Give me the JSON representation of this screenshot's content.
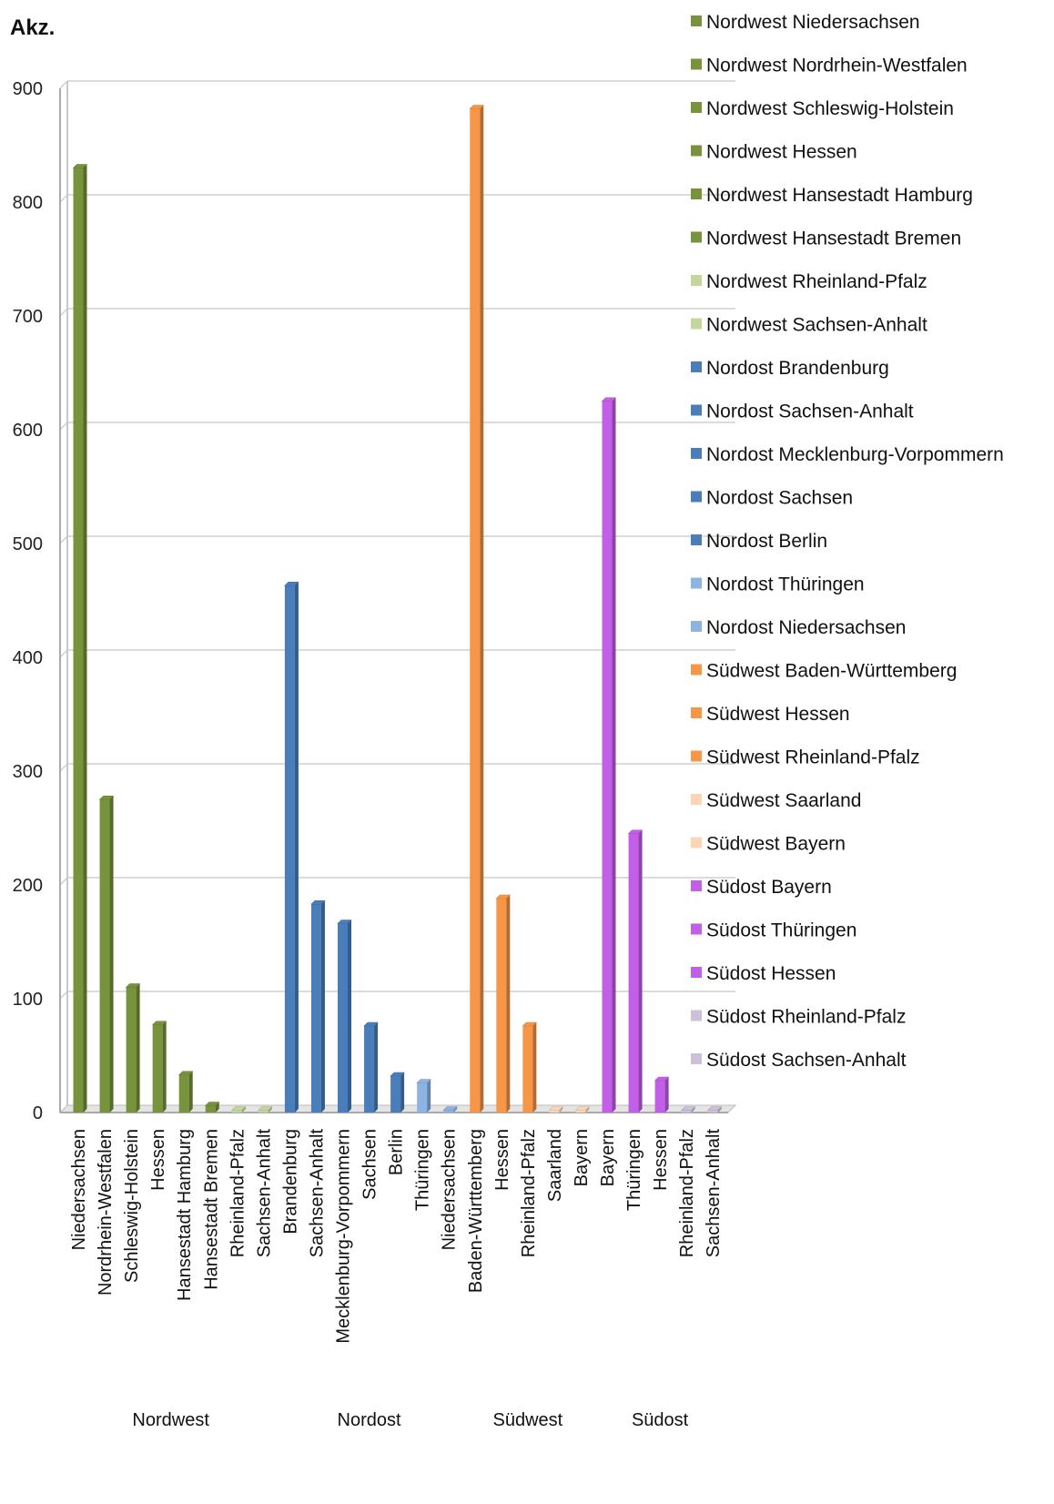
{
  "chart_data": {
    "type": "bar",
    "ylabel": "Akz.",
    "ylim": [
      0,
      900
    ],
    "yticks": [
      0,
      100,
      200,
      300,
      400,
      500,
      600,
      700,
      800,
      900
    ],
    "grid": true,
    "legend_position": "right",
    "groups": [
      {
        "name": "Nordwest",
        "categories": [
          "Niedersachsen",
          "Nordrhein-Westfalen",
          "Schleswig-Holstein",
          "Hessen",
          "Hansestadt Hamburg",
          "Hansestadt Bremen",
          "Rheinland-Pfalz",
          "Sachsen-Anhalt"
        ]
      },
      {
        "name": "Nordost",
        "categories": [
          "Brandenburg",
          "Sachsen-Anhalt",
          "Mecklenburg-Vorpommern",
          "Sachsen",
          "Berlin",
          "Thüringen",
          "Niedersachsen"
        ]
      },
      {
        "name": "Südwest",
        "categories": [
          "Baden-Württemberg",
          "Hessen",
          "Rheinland-Pfalz",
          "Saarland",
          "Bayern"
        ]
      },
      {
        "name": "Südost",
        "categories": [
          "Bayern",
          "Thüringen",
          "Hessen",
          "Rheinland-Pfalz",
          "Sachsen-Anhalt"
        ]
      }
    ],
    "series": [
      {
        "name": "Nordwest Niedersachsen",
        "value": 830,
        "color": "#77933c"
      },
      {
        "name": "Nordwest Nordrhein-Westfalen",
        "value": 275,
        "color": "#77933c"
      },
      {
        "name": "Nordwest Schleswig-Holstein",
        "value": 110,
        "color": "#77933c"
      },
      {
        "name": "Nordwest Hessen",
        "value": 77,
        "color": "#77933c"
      },
      {
        "name": "Nordwest Hansestadt Hamburg",
        "value": 33,
        "color": "#77933c"
      },
      {
        "name": "Nordwest Hansestadt Bremen",
        "value": 6,
        "color": "#77933c"
      },
      {
        "name": "Nordwest Rheinland-Pfalz",
        "value": 2,
        "color": "#c3d69b"
      },
      {
        "name": "Nordwest Sachsen-Anhalt",
        "value": 2,
        "color": "#c3d69b"
      },
      {
        "name": "Nordost Brandenburg",
        "value": 463,
        "color": "#4a7ebb"
      },
      {
        "name": "Nordost Sachsen-Anhalt",
        "value": 183,
        "color": "#4a7ebb"
      },
      {
        "name": "Nordost Mecklenburg-Vorpommern",
        "value": 166,
        "color": "#4a7ebb"
      },
      {
        "name": "Nordost Sachsen",
        "value": 76,
        "color": "#4a7ebb"
      },
      {
        "name": "Nordost Berlin",
        "value": 32,
        "color": "#4a7ebb"
      },
      {
        "name": "Nordost Thüringen",
        "value": 26,
        "color": "#8db3e2"
      },
      {
        "name": "Nordost Niedersachsen",
        "value": 2,
        "color": "#8db3e2"
      },
      {
        "name": "Südwest Baden-Württemberg",
        "value": 882,
        "color": "#f79646"
      },
      {
        "name": "Südwest Hessen",
        "value": 188,
        "color": "#f79646"
      },
      {
        "name": "Südwest Rheinland-Pfalz",
        "value": 76,
        "color": "#f79646"
      },
      {
        "name": "Südwest Saarland",
        "value": 2,
        "color": "#fbd5b5"
      },
      {
        "name": "Südwest Bayern",
        "value": 2,
        "color": "#fbd5b5"
      },
      {
        "name": "Südost Bayern",
        "value": 625,
        "color": "#c35ee8"
      },
      {
        "name": "Südost Thüringen",
        "value": 245,
        "color": "#c35ee8"
      },
      {
        "name": "Südost Hessen",
        "value": 28,
        "color": "#c35ee8"
      },
      {
        "name": "Südost Rheinland-Pfalz",
        "value": 2,
        "color": "#ccc0da"
      },
      {
        "name": "Südost Sachsen-Anhalt",
        "value": 2,
        "color": "#ccc0da"
      }
    ]
  }
}
